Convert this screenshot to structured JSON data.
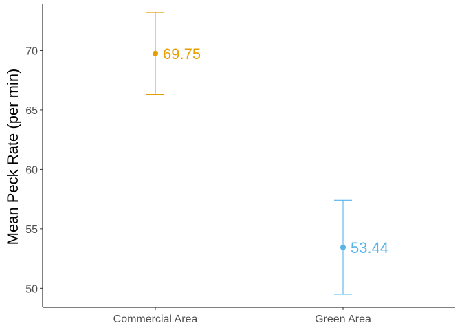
{
  "chart_data": {
    "type": "scatter",
    "categories": [
      "Commercial Area",
      "Green Area"
    ],
    "ylabel": "Mean Peck Rate (per min)",
    "xlabel": "",
    "ylim": [
      48.4,
      73.9
    ],
    "yticks": [
      50,
      55,
      60,
      65,
      70
    ],
    "grid": false,
    "points": [
      {
        "category": "Commercial Area",
        "mean": 69.75,
        "lower": 66.3,
        "upper": 73.2,
        "label": "69.75",
        "color": "#E69F00"
      },
      {
        "category": "Green Area",
        "mean": 53.44,
        "lower": 49.5,
        "upper": 57.4,
        "label": "53.44",
        "color": "#56B4E9"
      }
    ]
  }
}
